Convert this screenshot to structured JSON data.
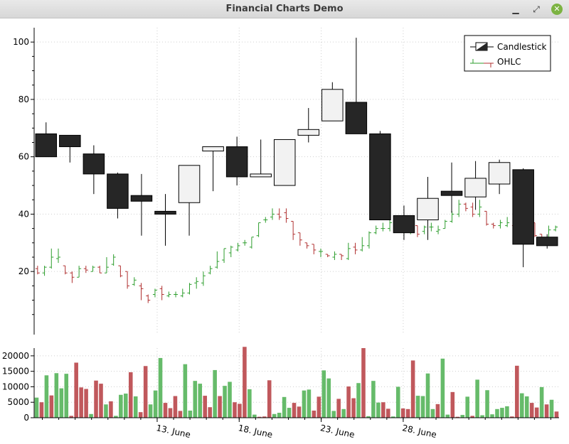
{
  "window": {
    "title": "Financial Charts Demo",
    "min_glyph": "▁",
    "max_glyph": "⤢",
    "close_glyph": "✕"
  },
  "colors": {
    "up": "#2e9e2e",
    "down": "#b03030",
    "vol_up": "#66bb6a",
    "vol_down": "#c0585c",
    "candle_dark": "#262626",
    "candle_light": "#f2f2f2",
    "grid": "#cfcfcf"
  },
  "chart_data": {
    "type": "candlestick+ohlc+bar",
    "legend": [
      "Candlestick",
      "OHLC"
    ],
    "legend_placement": "top-right",
    "price_axis": {
      "ticks": [
        20,
        40,
        60,
        80,
        100
      ],
      "range": [
        -2,
        105
      ]
    },
    "volume_axis": {
      "ticks": [
        0,
        5000,
        10000,
        15000,
        20000
      ],
      "range": [
        0,
        22500
      ]
    },
    "x_range": [
      0,
      32
    ],
    "date_ticks": [
      {
        "label": "13. June",
        "x": 7.5
      },
      {
        "label": "18. June",
        "x": 12.5
      },
      {
        "label": "23. June",
        "x": 17.5
      },
      {
        "label": "28. June",
        "x": 22.5
      }
    ],
    "candles": [
      [
        68,
        60,
        72,
        60
      ],
      [
        67.5,
        63.5,
        67.5,
        58
      ],
      [
        61,
        54,
        64,
        47
      ],
      [
        54,
        42,
        54.5,
        38.5
      ],
      [
        46.5,
        44.5,
        54,
        32.5
      ],
      [
        41,
        40,
        47,
        29
      ],
      [
        44,
        57,
        57,
        32.5
      ],
      [
        62,
        63.5,
        63.5,
        48
      ],
      [
        63.5,
        53,
        67,
        50
      ],
      [
        53,
        54,
        66,
        53
      ],
      [
        50,
        66,
        66,
        50
      ],
      [
        67.5,
        69.5,
        77,
        65
      ],
      [
        72.5,
        83.5,
        86,
        72.5
      ],
      [
        79,
        68,
        101.5,
        68
      ],
      [
        68,
        38,
        69,
        38
      ],
      [
        39.5,
        33.5,
        43,
        31
      ],
      [
        38,
        45.5,
        53,
        31
      ],
      [
        48,
        46.5,
        58,
        40.5
      ],
      [
        46,
        52.5,
        58.5,
        41.5
      ],
      [
        50.5,
        58,
        59,
        47
      ],
      [
        55.5,
        29.5,
        56,
        21.5
      ],
      [
        32,
        29,
        33,
        28
      ]
    ],
    "ohlc": [
      [
        21,
        19.5,
        22,
        19
      ],
      [
        19.5,
        21.5,
        22,
        18.5
      ],
      [
        21.5,
        25,
        28,
        21
      ],
      [
        24.5,
        25,
        28,
        23
      ],
      [
        22,
        19.5,
        22,
        19
      ],
      [
        19.5,
        18,
        20,
        16
      ],
      [
        18,
        21,
        22,
        18
      ],
      [
        21,
        20.5,
        22,
        19.5
      ],
      [
        20,
        21.5,
        22,
        20
      ],
      [
        21.5,
        19.5,
        22,
        19.5
      ],
      [
        19.5,
        21.5,
        25,
        19.5
      ],
      [
        22.5,
        25,
        26,
        22
      ],
      [
        22,
        18.5,
        22,
        18
      ],
      [
        20,
        15,
        20,
        14
      ],
      [
        15.5,
        17,
        18,
        15
      ],
      [
        15,
        14,
        16,
        10
      ],
      [
        11.5,
        10,
        12,
        9
      ],
      [
        12,
        13.5,
        14,
        11
      ],
      [
        14,
        12,
        15,
        10
      ],
      [
        11.5,
        12,
        13,
        11
      ],
      [
        12,
        12,
        13,
        11
      ],
      [
        11.5,
        12.5,
        14,
        11
      ],
      [
        12.5,
        15.5,
        16,
        12
      ],
      [
        16,
        16.5,
        18,
        14
      ],
      [
        16,
        18.5,
        20,
        15
      ],
      [
        19.5,
        21,
        22,
        19
      ],
      [
        21.5,
        23.5,
        27,
        21
      ],
      [
        24,
        28,
        28,
        23
      ],
      [
        26.5,
        28.5,
        29,
        25
      ],
      [
        27.5,
        29,
        30,
        27
      ],
      [
        30,
        30,
        31,
        29
      ],
      [
        28.5,
        32,
        32,
        28
      ],
      [
        32.5,
        37,
        37,
        32
      ],
      [
        38,
        38,
        39,
        37
      ],
      [
        39,
        40,
        42,
        38
      ],
      [
        40,
        39,
        42,
        38
      ],
      [
        40.5,
        38.5,
        42,
        37
      ],
      [
        37.5,
        33,
        37.5,
        31
      ],
      [
        33.5,
        31,
        33.5,
        29
      ],
      [
        30,
        29,
        30,
        28
      ],
      [
        29.5,
        27.5,
        29.5,
        26
      ],
      [
        27,
        27,
        28,
        25
      ],
      [
        26,
        25.5,
        26,
        25
      ],
      [
        25,
        26,
        27,
        24
      ],
      [
        26,
        25.5,
        26,
        24
      ],
      [
        24.5,
        28,
        30,
        24
      ],
      [
        28.5,
        27.5,
        30,
        26
      ],
      [
        27.5,
        29,
        32,
        27
      ],
      [
        29,
        33.5,
        34,
        28
      ],
      [
        33.5,
        35,
        36,
        33
      ],
      [
        35,
        35,
        37,
        34
      ],
      [
        35,
        37,
        40,
        34
      ],
      [
        35.5,
        37.5,
        38,
        35
      ],
      [
        36,
        35,
        37,
        34
      ],
      [
        34,
        36,
        37,
        33
      ],
      [
        36,
        33,
        36,
        32
      ],
      [
        34,
        35.5,
        36,
        33
      ],
      [
        35.5,
        35.5,
        37,
        34
      ],
      [
        34,
        34.5,
        36,
        33
      ],
      [
        35,
        37.5,
        38,
        35
      ],
      [
        37.5,
        40,
        41,
        37
      ],
      [
        40,
        43.5,
        45,
        39
      ],
      [
        43.5,
        42,
        44,
        41
      ],
      [
        42.5,
        40,
        44,
        39
      ],
      [
        40,
        42.5,
        45,
        39
      ],
      [
        41,
        36.5,
        41,
        36
      ],
      [
        36.5,
        36,
        37,
        35
      ],
      [
        36,
        37,
        38,
        35
      ],
      [
        36,
        37,
        39,
        35.5
      ],
      [
        36,
        35,
        36,
        33
      ],
      [
        35,
        38.5,
        39,
        34
      ],
      [
        38,
        37.5,
        38,
        36
      ],
      [
        37,
        32.5,
        37,
        32
      ],
      [
        33,
        31,
        33,
        30
      ],
      [
        31,
        34.5,
        36,
        31
      ],
      [
        34.5,
        35.5,
        36,
        34
      ]
    ],
    "volume": [
      [
        6500,
        1
      ],
      [
        5000,
        0
      ],
      [
        13700,
        1
      ],
      [
        7200,
        0
      ],
      [
        14400,
        1
      ],
      [
        9500,
        1
      ],
      [
        14200,
        1
      ],
      [
        600,
        0
      ],
      [
        17800,
        0
      ],
      [
        9800,
        0
      ],
      [
        9300,
        0
      ],
      [
        1200,
        1
      ],
      [
        12000,
        0
      ],
      [
        11000,
        0
      ],
      [
        4300,
        1
      ],
      [
        5300,
        0
      ],
      [
        600,
        1
      ],
      [
        7400,
        1
      ],
      [
        7800,
        1
      ],
      [
        14700,
        0
      ],
      [
        6900,
        1
      ],
      [
        1800,
        0
      ],
      [
        16700,
        0
      ],
      [
        4300,
        1
      ],
      [
        8800,
        1
      ],
      [
        19300,
        1
      ],
      [
        4800,
        0
      ],
      [
        3100,
        0
      ],
      [
        7000,
        0
      ],
      [
        2200,
        0
      ],
      [
        17300,
        1
      ],
      [
        2300,
        1
      ],
      [
        11900,
        1
      ],
      [
        11000,
        1
      ],
      [
        7100,
        0
      ],
      [
        3400,
        0
      ],
      [
        15400,
        1
      ],
      [
        7000,
        0
      ],
      [
        10300,
        1
      ],
      [
        11600,
        1
      ],
      [
        5000,
        0
      ],
      [
        4500,
        0
      ],
      [
        22900,
        0
      ],
      [
        9200,
        1
      ],
      [
        1000,
        1
      ],
      [
        300,
        0
      ],
      [
        400,
        0
      ],
      [
        12100,
        0
      ],
      [
        1200,
        1
      ],
      [
        1600,
        1
      ],
      [
        6700,
        1
      ],
      [
        3200,
        1
      ],
      [
        4800,
        0
      ],
      [
        3600,
        0
      ],
      [
        8800,
        1
      ],
      [
        9100,
        1
      ],
      [
        2300,
        0
      ],
      [
        6800,
        0
      ],
      [
        15300,
        1
      ],
      [
        12700,
        1
      ],
      [
        2200,
        1
      ],
      [
        6100,
        0
      ],
      [
        2800,
        1
      ],
      [
        10100,
        0
      ],
      [
        6300,
        0
      ],
      [
        11200,
        1
      ],
      [
        22500,
        0
      ],
      [
        500,
        1
      ],
      [
        11900,
        1
      ],
      [
        4900,
        1
      ],
      [
        5000,
        0
      ],
      [
        2900,
        0
      ],
      [
        400,
        1
      ],
      [
        10000,
        1
      ],
      [
        3000,
        0
      ],
      [
        2800,
        0
      ],
      [
        18500,
        0
      ],
      [
        7100,
        1
      ],
      [
        7000,
        1
      ],
      [
        14300,
        1
      ],
      [
        2800,
        1
      ],
      [
        4400,
        0
      ],
      [
        19100,
        1
      ],
      [
        1000,
        1
      ],
      [
        8300,
        0
      ],
      [
        300,
        0
      ],
      [
        900,
        1
      ],
      [
        6800,
        1
      ],
      [
        600,
        0
      ],
      [
        12300,
        1
      ],
      [
        800,
        1
      ],
      [
        8900,
        1
      ],
      [
        1100,
        1
      ],
      [
        2800,
        1
      ],
      [
        3200,
        1
      ],
      [
        3700,
        1
      ],
      [
        400,
        0
      ],
      [
        16800,
        0
      ],
      [
        7900,
        1
      ],
      [
        6900,
        1
      ],
      [
        4800,
        0
      ],
      [
        3300,
        0
      ],
      [
        9900,
        1
      ],
      [
        4300,
        0
      ],
      [
        5800,
        1
      ],
      [
        2000,
        0
      ]
    ]
  }
}
